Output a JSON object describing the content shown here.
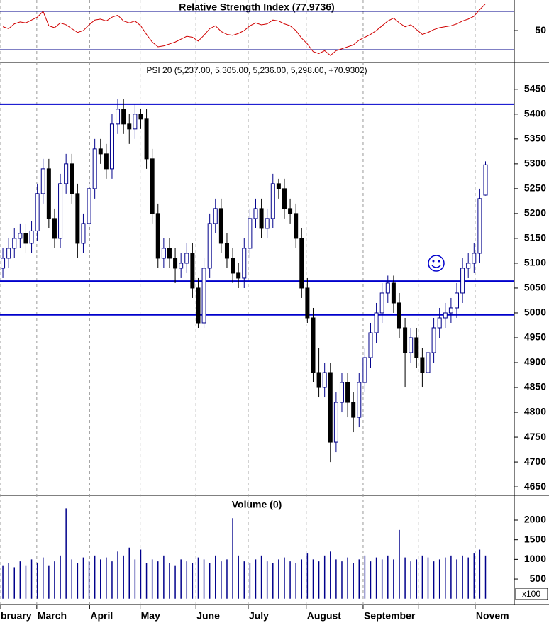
{
  "chart_data": [
    {
      "type": "line",
      "title": "Relative Strength Index (77.9736)",
      "color": "#d00000",
      "ylim": [
        16.7,
        81.9
      ],
      "yticks": [
        50
      ],
      "hlines": [
        70,
        30
      ],
      "xlim": [
        0,
        89.5
      ],
      "values": [
        54,
        52,
        57,
        59,
        58,
        61,
        64,
        70,
        55,
        53,
        58,
        56,
        52,
        48,
        50,
        56,
        61,
        62,
        60,
        64,
        66,
        60,
        58,
        60,
        55,
        46,
        38,
        33,
        34,
        36,
        38,
        41,
        44,
        43,
        39,
        45,
        52,
        55,
        49,
        46,
        45,
        47,
        50,
        55,
        58,
        56,
        57,
        61,
        60,
        57,
        55,
        50,
        42,
        36,
        28,
        26,
        29,
        24,
        29,
        31,
        33,
        35,
        40,
        43,
        46,
        50,
        55,
        60,
        63,
        58,
        54,
        56,
        51,
        46,
        48,
        51,
        53,
        54,
        55,
        57,
        60,
        62,
        65,
        72,
        77.97
      ]
    },
    {
      "type": "candlestick",
      "title": "PSI 20 (5,237.00, 5,305.00, 5,236.00, 5,298.00, +70.9302)",
      "up_color": "#00008b",
      "down_color": "#000000",
      "ylim": [
        4633,
        5504
      ],
      "yticks": [
        4650,
        4700,
        4750,
        4800,
        4850,
        4900,
        4950,
        5000,
        5050,
        5100,
        5150,
        5200,
        5250,
        5300,
        5350,
        5400,
        5450
      ],
      "hlines": [
        5420,
        5064,
        4996
      ],
      "xlim": [
        0,
        89.5
      ],
      "open": [
        5090,
        5110,
        5130,
        5150,
        5160,
        5140,
        5165,
        5240,
        5290,
        5190,
        5150,
        5260,
        5300,
        5240,
        5140,
        5180,
        5250,
        5330,
        5320,
        5290,
        5380,
        5410,
        5380,
        5370,
        5400,
        5390,
        5310,
        5200,
        5110,
        5130,
        5110,
        5090,
        5100,
        5120,
        5050,
        4980,
        5090,
        5180,
        5210,
        5140,
        5110,
        5080,
        5070,
        5130,
        5190,
        5210,
        5170,
        5190,
        5260,
        5250,
        5210,
        5200,
        5150,
        5050,
        4990,
        4880,
        4850,
        4880,
        4740,
        4820,
        4860,
        4820,
        4790,
        4860,
        4910,
        4960,
        5000,
        5040,
        5060,
        5020,
        4970,
        4920,
        4950,
        4910,
        4880,
        4920,
        4970,
        4990,
        5000,
        5010,
        5040,
        5090,
        5100,
        5120,
        5237
      ],
      "high": [
        5130,
        5150,
        5170,
        5180,
        5180,
        5185,
        5260,
        5310,
        5310,
        5210,
        5280,
        5320,
        5320,
        5260,
        5200,
        5270,
        5350,
        5350,
        5340,
        5400,
        5430,
        5430,
        5400,
        5420,
        5410,
        5410,
        5330,
        5220,
        5150,
        5150,
        5130,
        5120,
        5140,
        5140,
        5070,
        5110,
        5200,
        5230,
        5230,
        5160,
        5130,
        5100,
        5150,
        5210,
        5230,
        5230,
        5210,
        5280,
        5270,
        5270,
        5230,
        5220,
        5170,
        5070,
        5010,
        4930,
        4900,
        4900,
        4840,
        4880,
        4880,
        4840,
        4880,
        4930,
        4980,
        5020,
        5060,
        5075,
        5075,
        5040,
        4990,
        4970,
        4970,
        4930,
        4940,
        4990,
        5010,
        5020,
        5030,
        5060,
        5110,
        5120,
        5140,
        5250,
        5305
      ],
      "low": [
        5070,
        5090,
        5110,
        5130,
        5120,
        5120,
        5145,
        5220,
        5170,
        5130,
        5130,
        5240,
        5220,
        5110,
        5120,
        5160,
        5230,
        5300,
        5270,
        5270,
        5360,
        5360,
        5340,
        5350,
        5370,
        5290,
        5180,
        5090,
        5090,
        5090,
        5060,
        5070,
        5080,
        5030,
        4970,
        4970,
        5070,
        5160,
        5120,
        5090,
        5060,
        5050,
        5050,
        5110,
        5170,
        5150,
        5150,
        5170,
        5230,
        5190,
        5180,
        5130,
        5030,
        4980,
        4860,
        4830,
        4830,
        4700,
        4720,
        4800,
        4790,
        4760,
        4770,
        4840,
        4890,
        4940,
        4980,
        5020,
        5000,
        4950,
        4850,
        4900,
        4890,
        4850,
        4860,
        4900,
        4950,
        4970,
        4980,
        4990,
        5020,
        5070,
        5080,
        5100,
        5236
      ],
      "close": [
        5110,
        5130,
        5150,
        5160,
        5140,
        5165,
        5240,
        5290,
        5190,
        5150,
        5260,
        5300,
        5240,
        5140,
        5180,
        5250,
        5330,
        5320,
        5290,
        5380,
        5410,
        5380,
        5370,
        5400,
        5390,
        5310,
        5200,
        5110,
        5130,
        5110,
        5090,
        5100,
        5120,
        5050,
        4980,
        5090,
        5180,
        5210,
        5140,
        5110,
        5080,
        5070,
        5130,
        5190,
        5210,
        5170,
        5190,
        5260,
        5250,
        5210,
        5200,
        5150,
        5050,
        4990,
        4880,
        4850,
        4880,
        4740,
        4820,
        4860,
        4820,
        4790,
        4860,
        4910,
        4960,
        5000,
        5040,
        5060,
        5020,
        4970,
        4920,
        4950,
        4910,
        4880,
        4920,
        4970,
        4990,
        5000,
        5010,
        5040,
        5090,
        5100,
        5120,
        5230,
        5298
      ]
    },
    {
      "type": "bar",
      "title": "Volume (0)",
      "unit_label": "x100",
      "color": "#00008b",
      "ylim": [
        -149,
        2632
      ],
      "yticks": [
        500,
        1000,
        1500,
        2000
      ],
      "xlim": [
        0,
        89.5
      ],
      "grid": true,
      "xticks": [
        {
          "value": 0,
          "label": "bruary"
        },
        {
          "value": 6.4,
          "label": "March"
        },
        {
          "value": 15.6,
          "label": "April"
        },
        {
          "value": 24.4,
          "label": "May"
        },
        {
          "value": 34.1,
          "label": "June"
        },
        {
          "value": 43.2,
          "label": "July"
        },
        {
          "value": 53.3,
          "label": "August"
        },
        {
          "value": 63.2,
          "label": "September"
        },
        {
          "value": 72.8,
          "label": null
        },
        {
          "value": 82.7,
          "label": "Novem"
        }
      ],
      "values": [
        850,
        900,
        800,
        950,
        850,
        1000,
        900,
        1050,
        850,
        950,
        1100,
        2300,
        1000,
        900,
        1050,
        950,
        1100,
        1000,
        1050,
        950,
        1200,
        1100,
        1300,
        1000,
        1250,
        900,
        1000,
        950,
        1100,
        900,
        850,
        1000,
        950,
        900,
        1050,
        1000,
        900,
        1100,
        950,
        1000,
        2050,
        1100,
        950,
        900,
        1000,
        1100,
        950,
        900,
        1000,
        1050,
        950,
        900,
        1000,
        1150,
        1000,
        950,
        1100,
        1200,
        1000,
        950,
        1050,
        900,
        1000,
        1100,
        950,
        1050,
        1000,
        1100,
        1000,
        1750,
        1050,
        950,
        1000,
        1100,
        1050,
        950,
        1000,
        1050,
        1100,
        1000,
        1100,
        1050,
        1150,
        1250,
        1100
      ]
    }
  ]
}
